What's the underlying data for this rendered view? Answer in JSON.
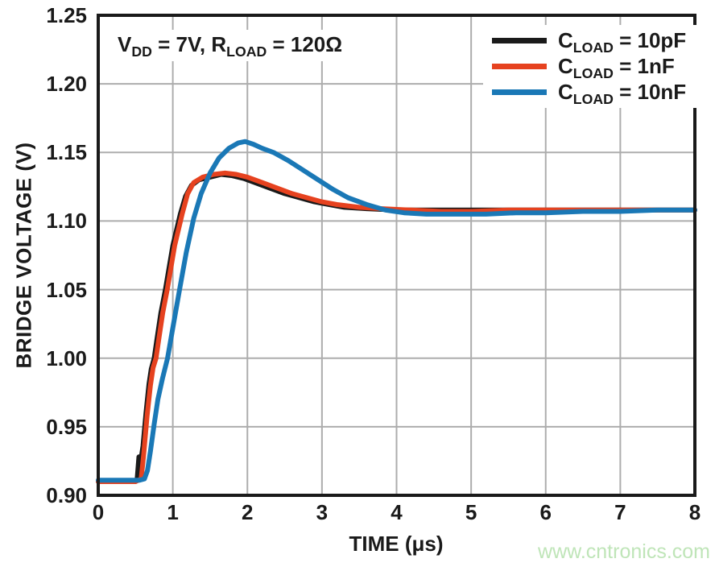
{
  "watermark": {
    "text": "www.cntronics.com",
    "color": "#bfe5b8"
  },
  "chart_data": {
    "type": "line",
    "title": "",
    "xlabel": "TIME (μs)",
    "ylabel": "BRIDGE VOLTAGE (V)",
    "xlim": [
      0,
      8
    ],
    "ylim": [
      0.9,
      1.25
    ],
    "xticks": [
      "0",
      "1",
      "2",
      "3",
      "4",
      "5",
      "6",
      "7",
      "8"
    ],
    "yticks": [
      "0.90",
      "0.95",
      "1.00",
      "1.05",
      "1.10",
      "1.15",
      "1.20",
      "1.25"
    ],
    "grid": true,
    "legend_position": "top-right",
    "colors": {
      "text": "#1a1a1a",
      "grid": "#adadad",
      "frame": "#1a1a1a"
    },
    "annotation": {
      "text": "VDD = 7V, RLOAD = 120Ω",
      "parts": [
        {
          "t": "V"
        },
        {
          "sub": "DD"
        },
        {
          "t": " = 7V, R"
        },
        {
          "sub": "LOAD"
        },
        {
          "t": " = 120Ω"
        }
      ]
    },
    "series": [
      {
        "name": "CLOAD = 10pF",
        "label_parts": [
          {
            "t": "C"
          },
          {
            "sub": "LOAD"
          },
          {
            "t": " = 10pF"
          }
        ],
        "color": "#1a1a1a",
        "points": [
          [
            0,
            0.91
          ],
          [
            0.45,
            0.91
          ],
          [
            0.52,
            0.911
          ],
          [
            0.545,
            0.928
          ],
          [
            0.565,
            0.923
          ],
          [
            0.6,
            0.936
          ],
          [
            0.64,
            0.96
          ],
          [
            0.68,
            0.981
          ],
          [
            0.71,
            0.992
          ],
          [
            0.75,
            1.0
          ],
          [
            0.79,
            1.015
          ],
          [
            0.84,
            1.033
          ],
          [
            0.9,
            1.05
          ],
          [
            1.0,
            1.082
          ],
          [
            1.1,
            1.105
          ],
          [
            1.17,
            1.118
          ],
          [
            1.25,
            1.126
          ],
          [
            1.35,
            1.13
          ],
          [
            1.5,
            1.132
          ],
          [
            1.65,
            1.134
          ],
          [
            1.8,
            1.133
          ],
          [
            1.95,
            1.131
          ],
          [
            2.1,
            1.128
          ],
          [
            2.3,
            1.124
          ],
          [
            2.5,
            1.12
          ],
          [
            2.7,
            1.117
          ],
          [
            2.9,
            1.114
          ],
          [
            3.1,
            1.112
          ],
          [
            3.3,
            1.11
          ],
          [
            3.6,
            1.109
          ],
          [
            4.0,
            1.108
          ],
          [
            4.5,
            1.108
          ],
          [
            5.0,
            1.108
          ],
          [
            5.5,
            1.108
          ],
          [
            6.0,
            1.108
          ],
          [
            7.0,
            1.108
          ],
          [
            8.0,
            1.108
          ]
        ]
      },
      {
        "name": "CLOAD = 1nF",
        "label_parts": [
          {
            "t": "C"
          },
          {
            "sub": "LOAD"
          },
          {
            "t": " = 1nF"
          }
        ],
        "color": "#e6421f",
        "points": [
          [
            0,
            0.91
          ],
          [
            0.5,
            0.91
          ],
          [
            0.575,
            0.912
          ],
          [
            0.61,
            0.93
          ],
          [
            0.655,
            0.958
          ],
          [
            0.7,
            0.98
          ],
          [
            0.735,
            0.993
          ],
          [
            0.775,
            1.0
          ],
          [
            0.815,
            1.015
          ],
          [
            0.865,
            1.033
          ],
          [
            0.925,
            1.05
          ],
          [
            1.025,
            1.082
          ],
          [
            1.125,
            1.105
          ],
          [
            1.2,
            1.12
          ],
          [
            1.28,
            1.128
          ],
          [
            1.4,
            1.132
          ],
          [
            1.55,
            1.134
          ],
          [
            1.7,
            1.135
          ],
          [
            1.85,
            1.134
          ],
          [
            2.0,
            1.132
          ],
          [
            2.2,
            1.128
          ],
          [
            2.4,
            1.124
          ],
          [
            2.6,
            1.12
          ],
          [
            2.8,
            1.117
          ],
          [
            3.0,
            1.114
          ],
          [
            3.2,
            1.112
          ],
          [
            3.5,
            1.11
          ],
          [
            3.8,
            1.109
          ],
          [
            4.2,
            1.108
          ],
          [
            4.6,
            1.107
          ],
          [
            5.0,
            1.107
          ],
          [
            5.5,
            1.108
          ],
          [
            6.0,
            1.108
          ],
          [
            7.0,
            1.108
          ],
          [
            8.0,
            1.108
          ]
        ]
      },
      {
        "name": "CLOAD = 10nF",
        "label_parts": [
          {
            "t": "C"
          },
          {
            "sub": "LOAD"
          },
          {
            "t": " = 10nF"
          }
        ],
        "color": "#1a78b6",
        "points": [
          [
            0,
            0.911
          ],
          [
            0.55,
            0.911
          ],
          [
            0.62,
            0.912
          ],
          [
            0.66,
            0.918
          ],
          [
            0.7,
            0.932
          ],
          [
            0.75,
            0.952
          ],
          [
            0.8,
            0.97
          ],
          [
            0.86,
            0.985
          ],
          [
            0.93,
            1.0
          ],
          [
            1.0,
            1.022
          ],
          [
            1.09,
            1.05
          ],
          [
            1.18,
            1.077
          ],
          [
            1.28,
            1.102
          ],
          [
            1.38,
            1.12
          ],
          [
            1.5,
            1.135
          ],
          [
            1.62,
            1.146
          ],
          [
            1.75,
            1.153
          ],
          [
            1.88,
            1.157
          ],
          [
            1.97,
            1.158
          ],
          [
            2.08,
            1.156
          ],
          [
            2.2,
            1.153
          ],
          [
            2.35,
            1.15
          ],
          [
            2.55,
            1.144
          ],
          [
            2.75,
            1.137
          ],
          [
            2.95,
            1.13
          ],
          [
            3.15,
            1.123
          ],
          [
            3.35,
            1.117
          ],
          [
            3.6,
            1.112
          ],
          [
            3.85,
            1.108
          ],
          [
            4.1,
            1.106
          ],
          [
            4.4,
            1.105
          ],
          [
            4.8,
            1.105
          ],
          [
            5.2,
            1.105
          ],
          [
            5.6,
            1.106
          ],
          [
            6.0,
            1.106
          ],
          [
            6.5,
            1.107
          ],
          [
            7.0,
            1.107
          ],
          [
            7.5,
            1.108
          ],
          [
            8.0,
            1.108
          ]
        ]
      }
    ]
  }
}
